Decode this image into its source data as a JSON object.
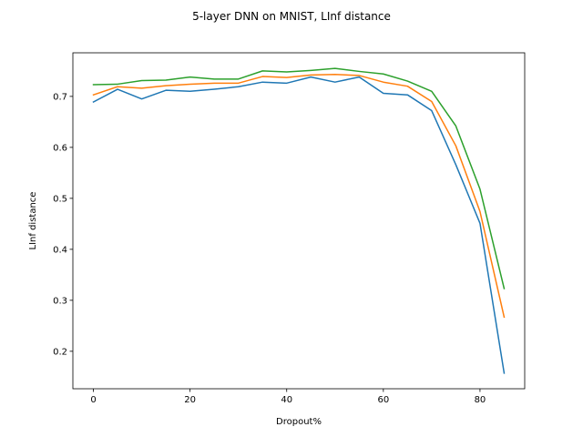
{
  "chart_data": {
    "type": "line",
    "title": "5-layer DNN on MNIST, LInf distance",
    "xlabel": "Dropout%",
    "ylabel": "LInf distance",
    "xlim": [
      -4.25,
      89.25
    ],
    "ylim": [
      0.1265,
      0.7855
    ],
    "xticks": [
      0,
      20,
      40,
      60,
      80
    ],
    "yticks": [
      0.2,
      0.3,
      0.4,
      0.5,
      0.6,
      0.7
    ],
    "grid": false,
    "legend": "none",
    "x": [
      0,
      5,
      10,
      15,
      20,
      25,
      30,
      35,
      40,
      45,
      50,
      55,
      60,
      65,
      70,
      75,
      80,
      85
    ],
    "series": [
      {
        "color": "#1f77b4",
        "values": [
          0.689,
          0.714,
          0.695,
          0.712,
          0.71,
          0.714,
          0.719,
          0.728,
          0.726,
          0.738,
          0.728,
          0.738,
          0.706,
          0.703,
          0.672,
          0.566,
          0.451,
          0.157
        ]
      },
      {
        "color": "#ff7f0e",
        "values": [
          0.703,
          0.719,
          0.716,
          0.721,
          0.724,
          0.726,
          0.726,
          0.739,
          0.737,
          0.742,
          0.743,
          0.741,
          0.728,
          0.72,
          0.69,
          0.603,
          0.474,
          0.267
        ]
      },
      {
        "color": "#2ca02c",
        "values": [
          0.723,
          0.724,
          0.731,
          0.732,
          0.738,
          0.734,
          0.734,
          0.75,
          0.748,
          0.751,
          0.755,
          0.749,
          0.744,
          0.73,
          0.71,
          0.642,
          0.518,
          0.323
        ]
      }
    ]
  }
}
